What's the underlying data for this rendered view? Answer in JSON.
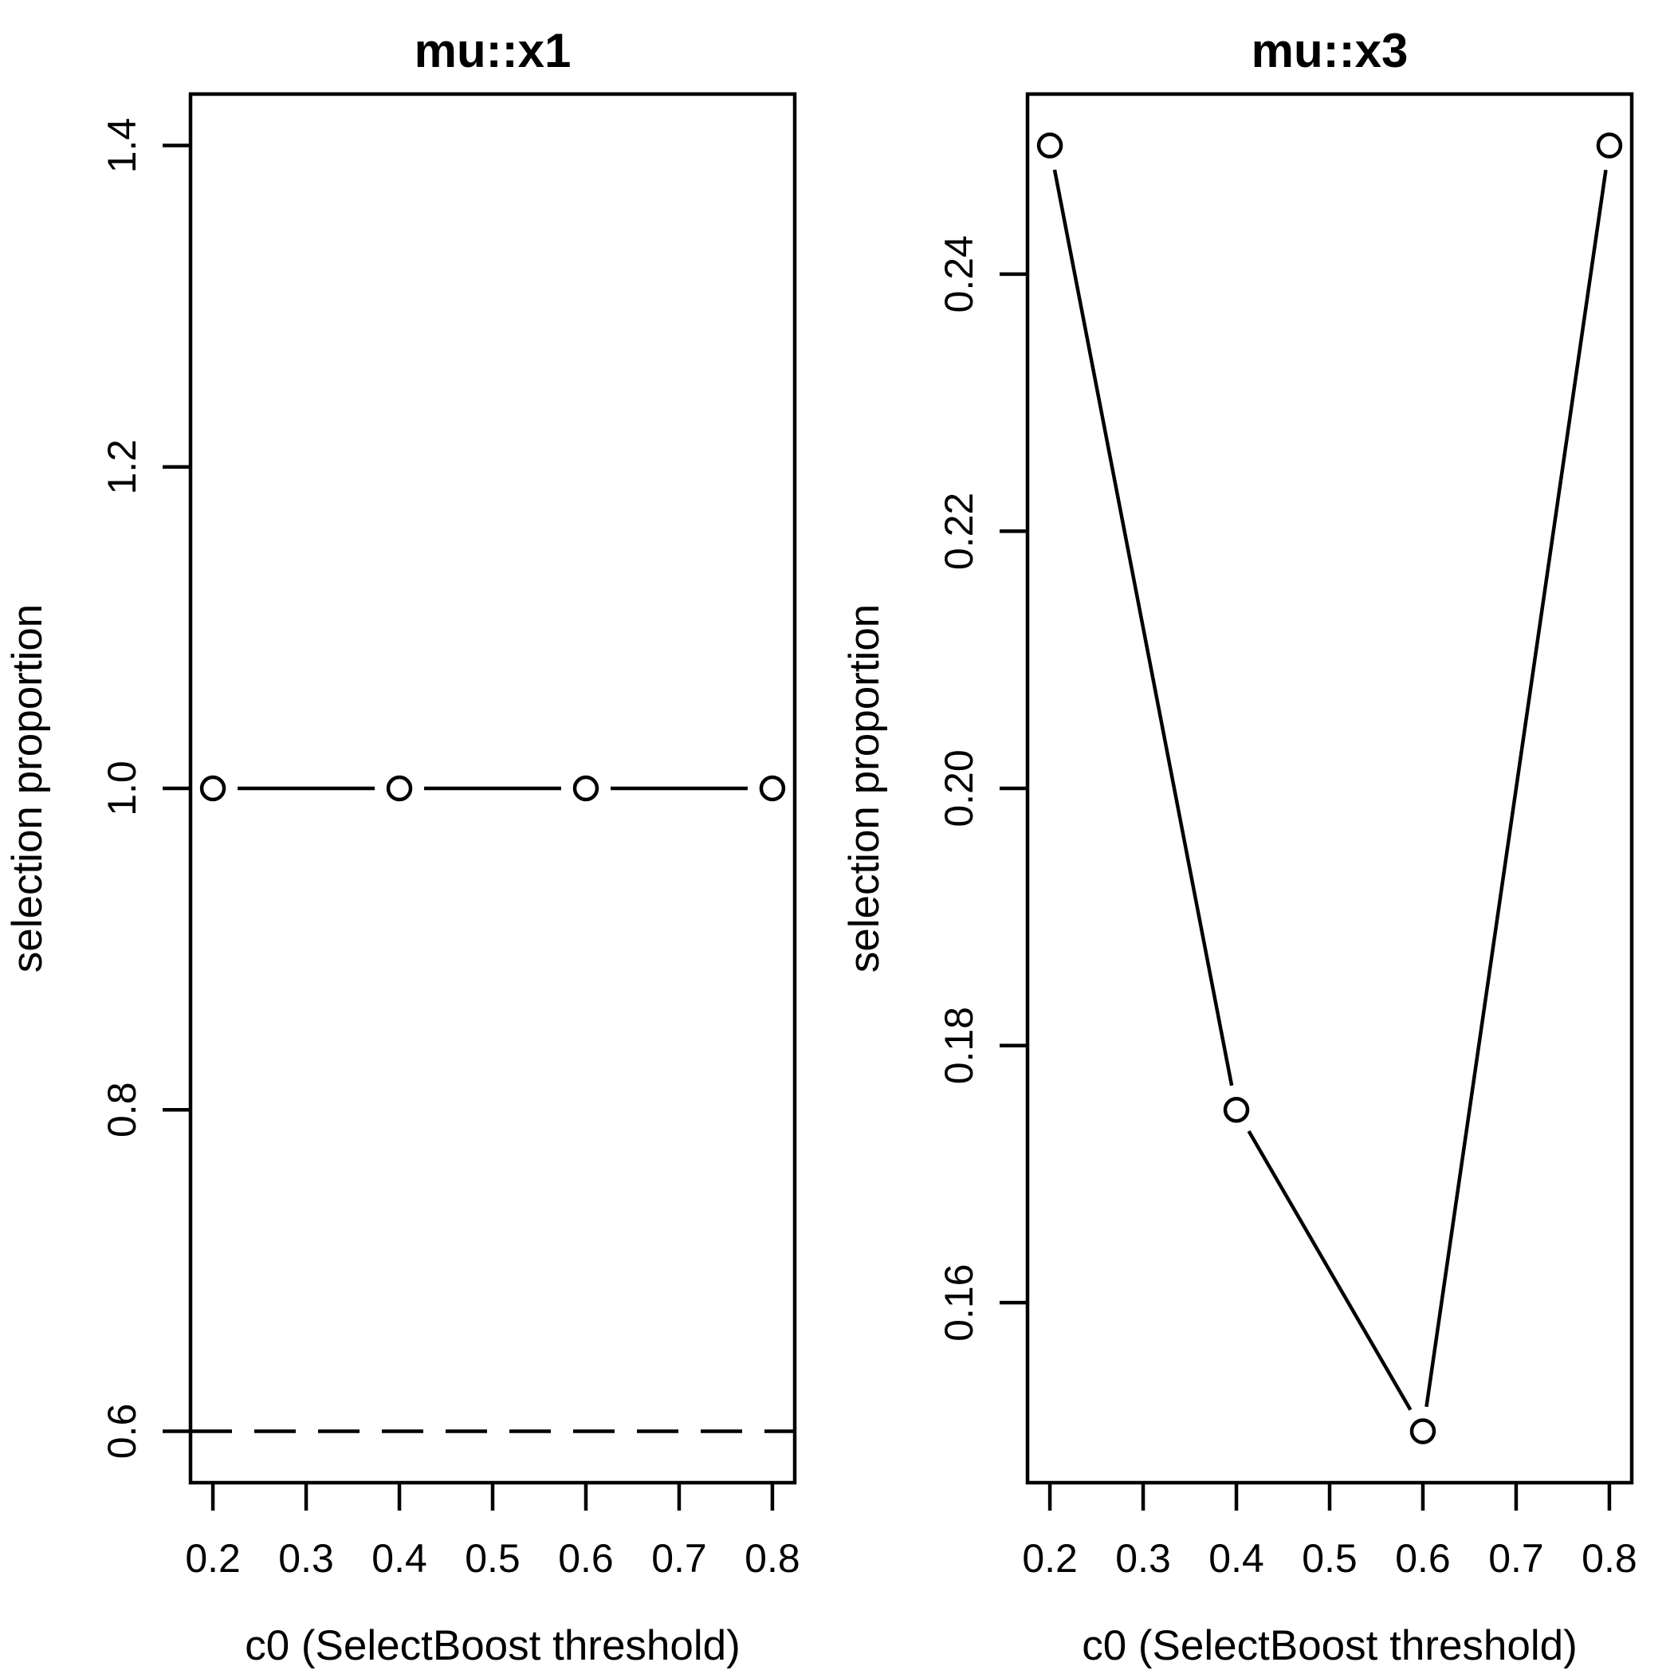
{
  "figure": {
    "background": "#ffffff",
    "foreground": "#000000",
    "panel_count": 2
  },
  "chart_data": [
    {
      "type": "line",
      "title": "mu::x1",
      "xlabel": "c0 (SelectBoost threshold)",
      "ylabel": "selection proportion",
      "x": [
        0.2,
        0.4,
        0.6,
        0.8
      ],
      "y": [
        1.0,
        1.0,
        1.0,
        1.0
      ],
      "xticks": [
        0.2,
        0.3,
        0.4,
        0.5,
        0.6,
        0.7,
        0.8
      ],
      "xtick_labels": [
        "0.2",
        "0.3",
        "0.4",
        "0.5",
        "0.6",
        "0.7",
        "0.8"
      ],
      "yticks": [
        0.6,
        0.8,
        1.0,
        1.2,
        1.4
      ],
      "ytick_labels": [
        "0.6",
        "0.8",
        "1.0",
        "1.2",
        "1.4"
      ],
      "xlim": [
        0.176,
        0.824
      ],
      "ylim": [
        0.568,
        1.432
      ],
      "threshold_line": 0.6,
      "threshold_style": "dashed",
      "marker": "open-circle",
      "r_plot_type": "b",
      "grid": false,
      "legend": null
    },
    {
      "type": "line",
      "title": "mu::x3",
      "xlabel": "c0 (SelectBoost threshold)",
      "ylabel": "selection proportion",
      "x": [
        0.2,
        0.4,
        0.6,
        0.8
      ],
      "y": [
        0.25,
        0.175,
        0.15,
        0.25
      ],
      "xticks": [
        0.2,
        0.3,
        0.4,
        0.5,
        0.6,
        0.7,
        0.8
      ],
      "xtick_labels": [
        "0.2",
        "0.3",
        "0.4",
        "0.5",
        "0.6",
        "0.7",
        "0.8"
      ],
      "yticks": [
        0.16,
        0.18,
        0.2,
        0.22,
        0.24
      ],
      "ytick_labels": [
        "0.16",
        "0.18",
        "0.20",
        "0.22",
        "0.24"
      ],
      "xlim": [
        0.176,
        0.824
      ],
      "ylim": [
        0.146,
        0.254
      ],
      "threshold_line": null,
      "threshold_style": null,
      "marker": "open-circle",
      "r_plot_type": "b",
      "grid": false,
      "legend": null
    }
  ]
}
